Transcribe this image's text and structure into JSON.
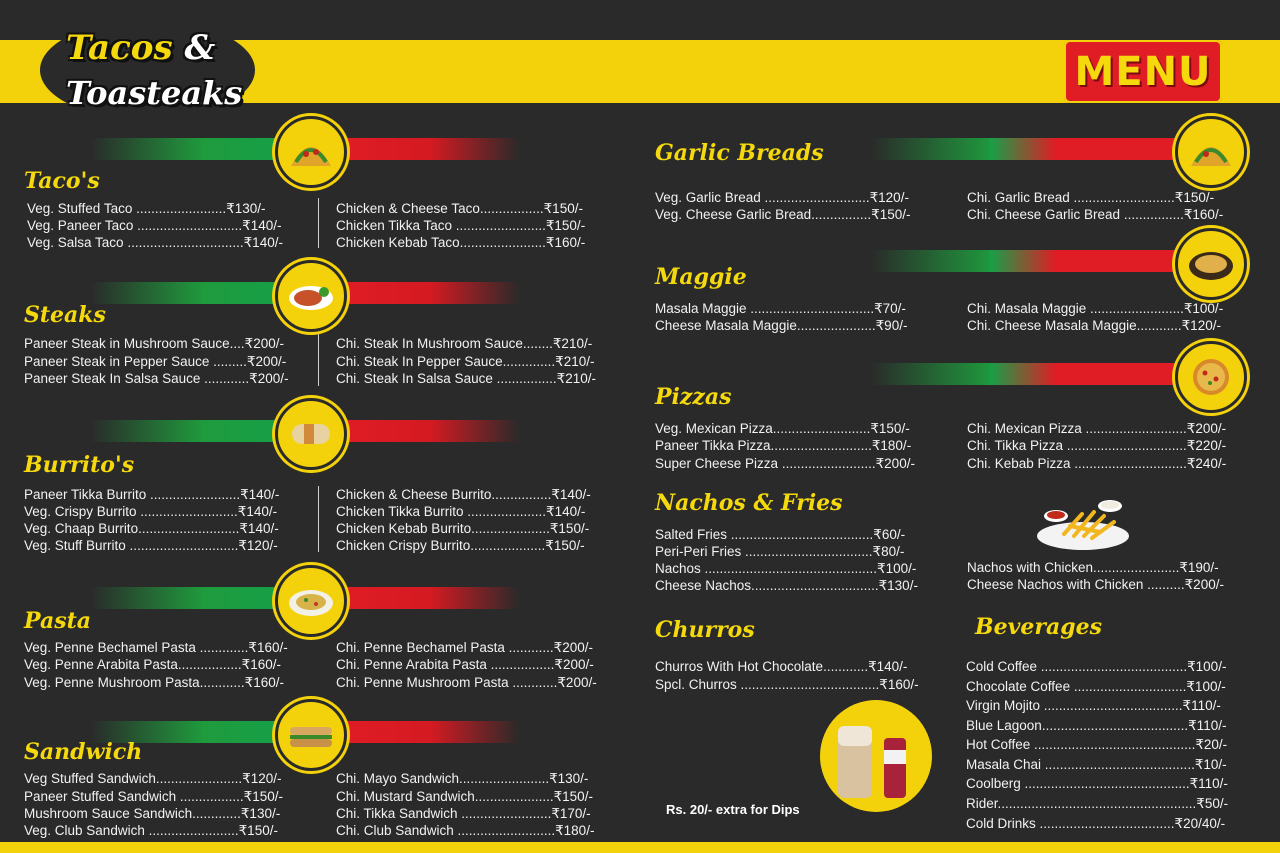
{
  "header": {
    "logo_line1": "Tacos",
    "logo_amp": "&",
    "logo_line2": "Toasteaks",
    "menu_label": "MENU"
  },
  "colors": {
    "yellow": "#f4d20b",
    "red": "#e01c25",
    "green": "#16a048",
    "background": "#2a2a2a"
  },
  "left": {
    "tacos": {
      "title": "Taco's",
      "veg": [
        "Veg. Stuffed Taco ........................₹130/-",
        "Veg. Paneer Taco ............................₹140/-",
        "Veg. Salsa Taco ...............................₹140/-"
      ],
      "chi": [
        "Chicken & Cheese Taco.................₹150/-",
        "Chicken Tikka Taco ........................₹150/-",
        "Chicken Kebab Taco.......................₹160/-"
      ]
    },
    "steaks": {
      "title": "Steaks",
      "veg": [
        "Paneer Steak in Mushroom Sauce....₹200/-",
        "Paneer Steak in Pepper Sauce .........₹200/-",
        "Paneer Steak In Salsa Sauce ............₹200/-"
      ],
      "chi": [
        "Chi. Steak In Mushroom Sauce........₹210/-",
        "Chi. Steak In Pepper Sauce..............₹210/-",
        "Chi. Steak In Salsa Sauce ................₹210/-"
      ]
    },
    "burritos": {
      "title": "Burrito's",
      "veg": [
        "Paneer Tikka Burrito ........................₹140/-",
        "Veg. Crispy Burrito ..........................₹140/-",
        "Veg. Chaap Burrito...........................₹140/-",
        "Veg. Stuff Burrito .............................₹120/-"
      ],
      "chi": [
        "Chicken & Cheese Burrito................₹140/-",
        "Chicken Tikka Burrito .....................₹140/-",
        "Chicken Kebab Burrito.....................₹150/-",
        "Chicken Crispy Burrito....................₹150/-"
      ]
    },
    "pasta": {
      "title": "Pasta",
      "veg": [
        "Veg. Penne Bechamel Pasta .............₹160/-",
        "Veg. Penne Arabita Pasta.................₹160/-",
        "Veg. Penne Mushroom Pasta............₹160/-"
      ],
      "chi": [
        "Chi. Penne Bechamel Pasta ............₹200/-",
        "Chi. Penne Arabita Pasta .................₹200/-",
        "Chi. Penne Mushroom Pasta ............₹200/-"
      ]
    },
    "sandwich": {
      "title": "Sandwich",
      "veg": [
        "Veg Stuffed Sandwich.......................₹120/-",
        "Paneer Stuffed Sandwich .................₹150/-",
        "Mushroom Sauce Sandwich.............₹130/-",
        "Veg. Club Sandwich ........................₹150/-"
      ],
      "chi": [
        "Chi. Mayo Sandwich........................₹130/-",
        "Chi. Mustard Sandwich.....................₹150/-",
        "Chi. Tikka Sandwich ........................₹170/-",
        "Chi. Club Sandwich ..........................₹180/-"
      ]
    }
  },
  "right": {
    "garlic": {
      "title": "Garlic Breads",
      "veg": [
        "Veg. Garlic Bread ............................₹120/-",
        "Veg. Cheese Garlic Bread................₹150/-"
      ],
      "chi": [
        "Chi. Garlic Bread ...........................₹150/-",
        "Chi. Cheese Garlic Bread ................₹160/-"
      ]
    },
    "maggie": {
      "title": "Maggie",
      "veg": [
        "Masala Maggie .................................₹70/-",
        "Cheese Masala Maggie.....................₹90/-"
      ],
      "chi": [
        "Chi. Masala Maggie .........................₹100/-",
        "Chi. Cheese Masala Maggie............₹120/-"
      ]
    },
    "pizzas": {
      "title": "Pizzas",
      "veg": [
        "Veg. Mexican Pizza..........................₹150/-",
        "Paneer Tikka Pizza...........................₹180/-",
        "Super Cheese Pizza .........................₹200/-"
      ],
      "chi": [
        "Chi. Mexican Pizza ...........................₹200/-",
        "Chi. Tikka Pizza ................................₹220/-",
        "Chi. Kebab Pizza ..............................₹240/-"
      ]
    },
    "nachos": {
      "title": "Nachos & Fries",
      "veg": [
        "Salted Fries ......................................₹60/-",
        "Peri-Peri Fries ..................................₹80/-",
        "Nachos ..............................................₹100/-",
        "Cheese Nachos..................................₹130/-"
      ],
      "chi": [
        "Nachos with Chicken.......................₹190/-",
        "Cheese Nachos with Chicken ..........₹200/-"
      ]
    },
    "churros": {
      "title": "Churros",
      "items": [
        "Churros With Hot Chocolate............₹140/-",
        "Spcl. Churros .....................................₹160/-"
      ]
    },
    "beverages": {
      "title": "Beverages",
      "items": [
        "Cold Coffee .......................................₹100/-",
        "Chocolate Coffee ..............................₹100/-",
        "Virgin Mojito .....................................₹110/-",
        "Blue Lagoon.......................................₹110/-",
        "Hot Coffee ...........................................₹20/-",
        "Masala Chai ........................................₹10/-",
        "Coolberg ............................................₹110/-",
        "Rider.....................................................₹50/-",
        "Cold Drinks ....................................₹20/40/-"
      ]
    },
    "dips_note": "Rs. 20/- extra for Dips"
  }
}
